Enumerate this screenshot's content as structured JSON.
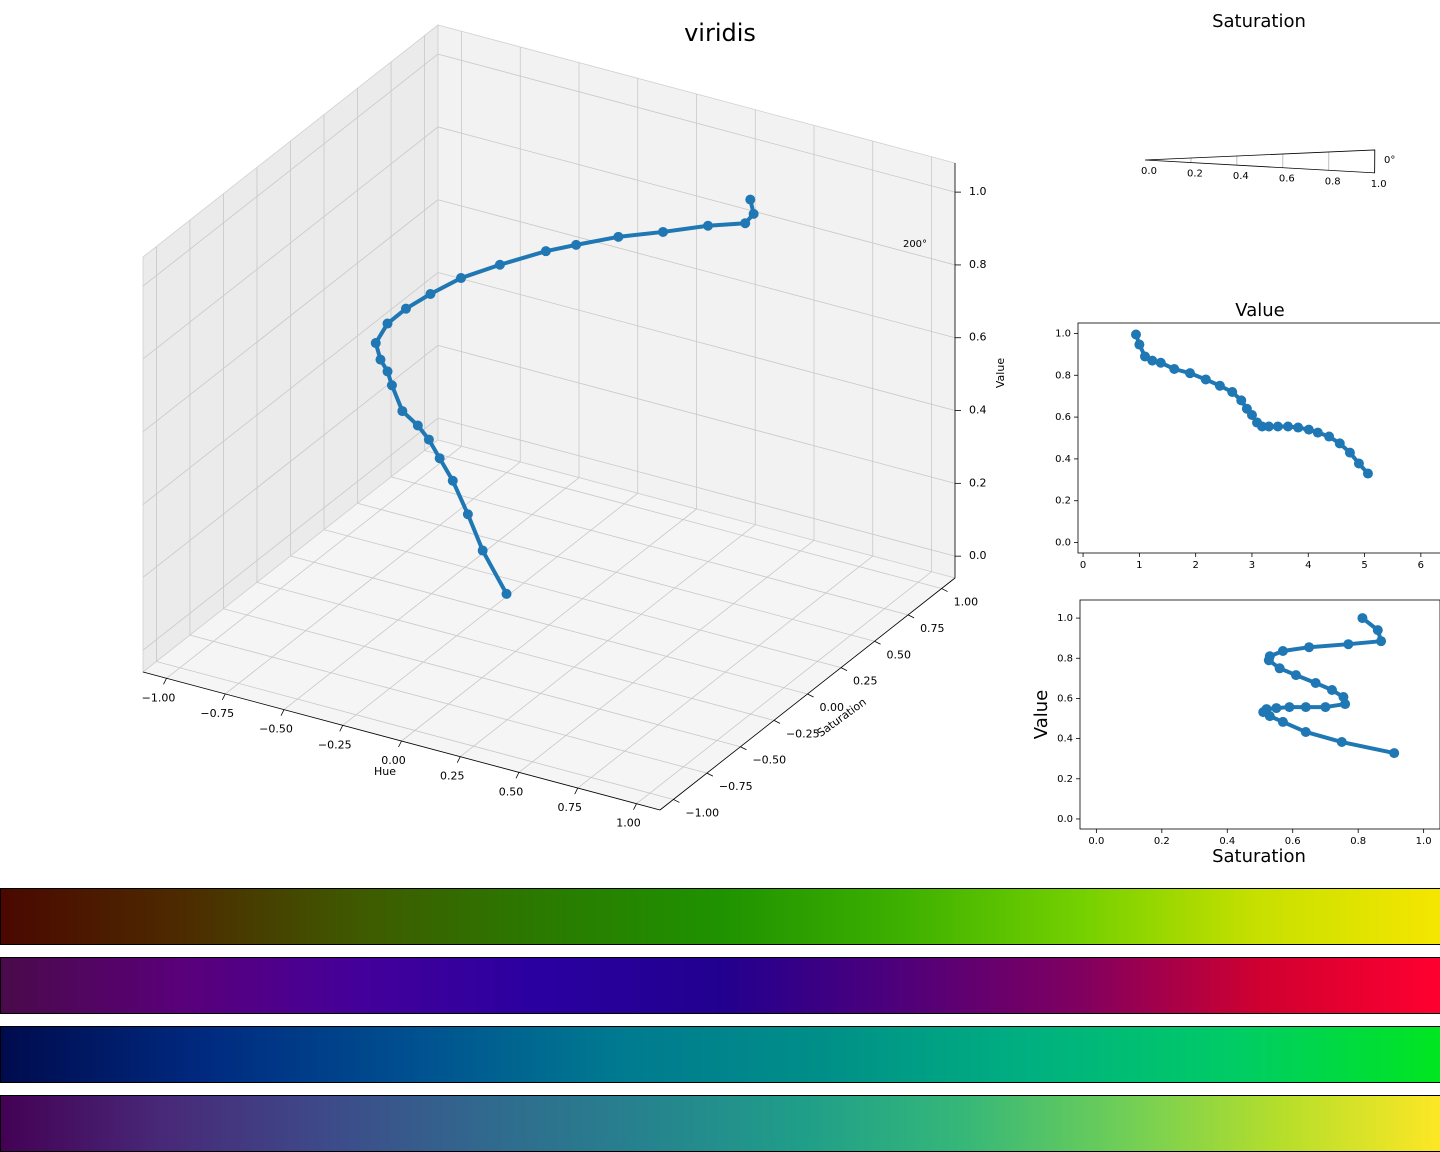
{
  "chart_data": [
    {
      "type": "line3d",
      "title": "viridis",
      "xlabel": "Hue",
      "ylabel": "Saturation",
      "zlabel": "Value",
      "color": "#1f77b4",
      "x": [
        0.48,
        0.46,
        0.39,
        0.26,
        0.12,
        -0.03,
        -0.17,
        -0.27,
        -0.42,
        -0.54,
        -0.63,
        -0.7,
        -0.75,
        -0.76,
        -0.7,
        -0.63,
        -0.56,
        -0.43,
        -0.33,
        -0.26,
        -0.18,
        -0.09,
        0.02,
        0.14,
        0.31
      ],
      "y": [
        0.66,
        0.72,
        0.78,
        0.73,
        0.64,
        0.57,
        0.5,
        0.45,
        0.37,
        0.29,
        0.22,
        0.16,
        0.11,
        0.04,
        -0.03,
        -0.1,
        -0.19,
        -0.34,
        -0.4,
        -0.44,
        -0.5,
        -0.56,
        -0.64,
        -0.74,
        -0.86
      ],
      "z": [
        1.0,
        0.94,
        0.885,
        0.87,
        0.855,
        0.836,
        0.81,
        0.79,
        0.75,
        0.716,
        0.677,
        0.642,
        0.607,
        0.572,
        0.557,
        0.557,
        0.557,
        0.552,
        0.547,
        0.532,
        0.512,
        0.483,
        0.433,
        0.383,
        0.328
      ],
      "xlim": [
        -1.1,
        1.1
      ],
      "ylim": [
        -1.1,
        1.1
      ],
      "zlim": [
        -0.06,
        1.08
      ],
      "xticks": [
        {
          "value": -1,
          "label": "−1.00"
        },
        {
          "value": -0.75,
          "label": "−0.75"
        },
        {
          "value": -0.5,
          "label": "−0.50"
        },
        {
          "value": -0.25,
          "label": "−0.25"
        },
        {
          "value": 0,
          "label": "0.00"
        },
        {
          "value": 0.25,
          "label": "0.25"
        },
        {
          "value": 0.5,
          "label": "0.50"
        },
        {
          "value": 0.75,
          "label": "0.75"
        },
        {
          "value": 1,
          "label": "1.00"
        }
      ],
      "yticks": [
        {
          "value": -1,
          "label": "−1.00"
        },
        {
          "value": -0.75,
          "label": "−0.75"
        },
        {
          "value": -0.5,
          "label": "−0.50"
        },
        {
          "value": -0.25,
          "label": "−0.25"
        },
        {
          "value": 0,
          "label": "0.00"
        },
        {
          "value": 0.25,
          "label": "0.25"
        },
        {
          "value": 0.5,
          "label": "0.50"
        },
        {
          "value": 0.75,
          "label": "0.75"
        },
        {
          "value": 1,
          "label": "1.00"
        }
      ],
      "zticks": [
        {
          "value": 0,
          "label": "0.0"
        },
        0.2,
        0.4,
        0.6,
        0.8,
        {
          "value": 1,
          "label": "1.0"
        }
      ],
      "grid": true
    },
    {
      "type": "polar",
      "title": "Saturation",
      "rlim": [
        0,
        1
      ],
      "rticks": [
        {
          "value": 0,
          "label": "0.0"
        },
        0.2,
        0.4,
        0.6,
        0.8,
        {
          "value": 1,
          "label": "1.0"
        }
      ],
      "theta_labels": [
        "0°",
        "200°"
      ]
    },
    {
      "type": "line",
      "title": "Value",
      "color": "#1f77b4",
      "x": [
        0.94,
        1.0,
        1.1,
        1.23,
        1.38,
        1.62,
        1.9,
        2.18,
        2.43,
        2.65,
        2.81,
        2.91,
        3.0,
        3.09,
        3.18,
        3.3,
        3.46,
        3.64,
        3.82,
        4.01,
        4.17,
        4.37,
        4.56,
        4.74,
        4.9,
        5.06
      ],
      "values": [
        0.995,
        0.947,
        0.89,
        0.87,
        0.86,
        0.83,
        0.81,
        0.78,
        0.75,
        0.72,
        0.68,
        0.64,
        0.61,
        0.574,
        0.555,
        0.555,
        0.555,
        0.555,
        0.55,
        0.54,
        0.526,
        0.507,
        0.474,
        0.43,
        0.378,
        0.33
      ],
      "xlim": [
        -0.09,
        6.5
      ],
      "ylim": [
        -0.05,
        1.05
      ],
      "xticks": [
        0,
        1,
        2,
        3,
        4,
        5,
        6
      ],
      "yticks": [
        {
          "value": 0,
          "label": "0.0"
        },
        0.2,
        0.4,
        0.6,
        0.8,
        {
          "value": 1,
          "label": "1.0"
        }
      ]
    },
    {
      "type": "line",
      "xlabel": "Saturation",
      "ylabel": "Value",
      "color": "#1f77b4",
      "x": [
        0.813,
        0.86,
        0.87,
        0.77,
        0.65,
        0.57,
        0.53,
        0.527,
        0.56,
        0.61,
        0.67,
        0.72,
        0.755,
        0.76,
        0.7,
        0.64,
        0.59,
        0.55,
        0.52,
        0.51,
        0.53,
        0.57,
        0.64,
        0.75,
        0.91
      ],
      "values": [
        1.0,
        0.94,
        0.885,
        0.87,
        0.855,
        0.836,
        0.81,
        0.79,
        0.75,
        0.716,
        0.677,
        0.642,
        0.607,
        0.572,
        0.557,
        0.557,
        0.557,
        0.552,
        0.547,
        0.532,
        0.512,
        0.483,
        0.433,
        0.383,
        0.328
      ],
      "xlim": [
        -0.05,
        1.05
      ],
      "ylim": [
        -0.05,
        1.09
      ],
      "xticks": [
        {
          "value": 0,
          "label": "0.0"
        },
        0.2,
        0.4,
        0.6,
        0.8,
        {
          "value": 1,
          "label": "1.0"
        }
      ],
      "yticks": [
        {
          "value": 0,
          "label": "0.0"
        },
        0.2,
        0.4,
        0.6,
        0.8,
        {
          "value": 1,
          "label": "1.0"
        }
      ]
    },
    {
      "type": "colorbar",
      "colors": [
        "#4a0800",
        "#4d2a00",
        "#3f5a00",
        "#2a7a00",
        "#1f9200",
        "#3db000",
        "#74d000",
        "#c8e000",
        "#f5e600"
      ]
    },
    {
      "type": "colorbar",
      "colors": [
        "#4a0a4a",
        "#5a007a",
        "#44009a",
        "#2a00a0",
        "#22008f",
        "#4f007a",
        "#800060",
        "#d00030",
        "#ff0030"
      ]
    },
    {
      "type": "colorbar",
      "colors": [
        "#000b4d",
        "#002a80",
        "#005090",
        "#007a90",
        "#008f88",
        "#00b080",
        "#00cc66",
        "#00e620"
      ]
    },
    {
      "type": "colorbar",
      "colors": [
        "#440154",
        "#482878",
        "#3e4989",
        "#31688e",
        "#26828e",
        "#1f9e89",
        "#35b779",
        "#6ece58",
        "#b5de2b",
        "#fde725"
      ]
    }
  ]
}
